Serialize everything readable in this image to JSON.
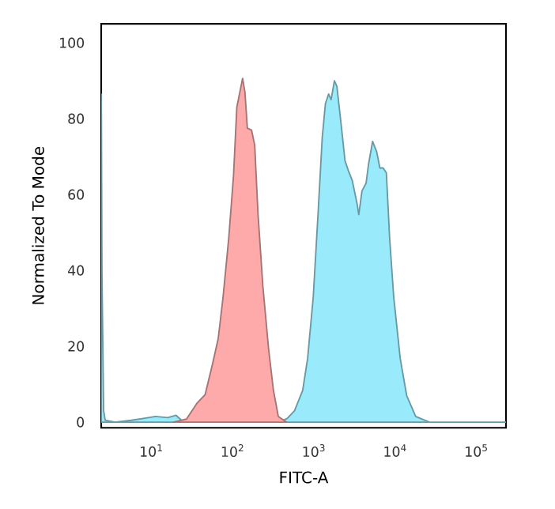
{
  "chart_data": {
    "type": "area",
    "xlabel": "FITC-A",
    "ylabel": "Normalized To Mode",
    "log": "x",
    "xlim": [
      2.4,
      230000
    ],
    "ylim": [
      -1.5,
      105
    ],
    "xticks": [
      {
        "value": 10,
        "label": "10$^{1}$"
      },
      {
        "value": 100,
        "label": "10$^{2}$"
      },
      {
        "value": 1000,
        "label": "10$^{3}$"
      },
      {
        "value": 10000,
        "label": "10$^{4}$"
      },
      {
        "value": 100000,
        "label": "10$^{5}$"
      }
    ],
    "yticks": [
      0,
      20,
      40,
      60,
      80,
      100
    ],
    "series": [
      {
        "color": "#99eafb",
        "x": [
          2.4,
          2.45,
          2.57,
          2.69,
          3.55,
          5.62,
          7.94,
          11.2,
          15.8,
          20.0,
          23.4,
          39.8,
          100,
          251,
          398,
          468,
          575,
          724,
          832,
          977,
          1120,
          1260,
          1380,
          1510,
          1620,
          1780,
          1910,
          2140,
          2400,
          2630,
          2950,
          3390,
          3550,
          3890,
          4370,
          4680,
          5250,
          5890,
          6460,
          7080,
          7760,
          8510,
          9550,
          11500,
          13800,
          17800,
          26300,
          229000
        ],
        "values": [
          86.5,
          40,
          3,
          0.5,
          0,
          0.5,
          1,
          1.5,
          1.2,
          1.8,
          0.5,
          0,
          0.3,
          0.3,
          0.3,
          1,
          3,
          8.4,
          16.7,
          33,
          55,
          75,
          84,
          86.5,
          85,
          90,
          88.5,
          79,
          69,
          66.4,
          63.7,
          57.5,
          54.7,
          61,
          63,
          68,
          74,
          71.3,
          67,
          67,
          65.7,
          48.5,
          33,
          16.7,
          7,
          1.5,
          0,
          0
        ]
      },
      {
        "color": "#ffaaaa",
        "x": [
          18.6,
          26.9,
          36.3,
          45.7,
          56.2,
          66.1,
          75.9,
          89.1,
          102,
          112,
          126,
          132,
          141,
          151,
          170,
          186,
          204,
          234,
          275,
          316,
          363,
          457
        ],
        "values": [
          0,
          0.8,
          5,
          7.3,
          15.3,
          22,
          33,
          48.5,
          65,
          83,
          88.5,
          90.6,
          87,
          77.5,
          77,
          73,
          55,
          36,
          19.5,
          8.4,
          1.5,
          0
        ]
      }
    ]
  }
}
